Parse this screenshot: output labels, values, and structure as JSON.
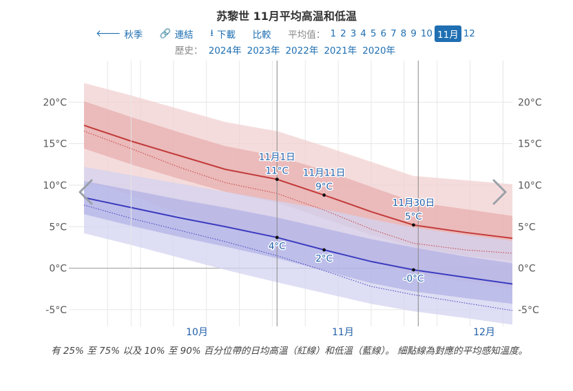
{
  "title": "苏黎世 11月平均高温和低温",
  "toolbar": {
    "prev_label": "秋季",
    "link_label": "連結",
    "download_label": "下載",
    "compare_label": "比較",
    "avg_label": "平均值：",
    "months": [
      "1",
      "2",
      "3",
      "4",
      "5",
      "6",
      "7",
      "8",
      "9",
      "10",
      "11月",
      "12"
    ],
    "active_month_index": 10
  },
  "history": {
    "label": "歷史：",
    "years": [
      "2024年",
      "2023年",
      "2022年",
      "2021年",
      "2020年"
    ]
  },
  "chart_data": {
    "type": "area",
    "x_range": [
      "2024-09-21",
      "2024-12-21"
    ],
    "ylim": [
      -7,
      25
    ],
    "y_ticks": [
      -5,
      0,
      5,
      10,
      15,
      20
    ],
    "y_tick_labels": [
      "-5°C",
      "0°C",
      "5°C",
      "10°C",
      "15°C",
      "20°C"
    ],
    "x_ticks": [
      {
        "label": "10月",
        "date": "2024-10-15"
      },
      {
        "label": "11月",
        "date": "2024-11-15"
      },
      {
        "label": "12月",
        "date": "2024-12-15"
      }
    ],
    "month_starts": [
      "2024-10-01",
      "2024-11-01",
      "2024-12-01"
    ],
    "series": [
      {
        "x": [
          "2024-09-21",
          "2024-10-01",
          "2024-10-11",
          "2024-10-21",
          "2024-11-01",
          "2024-11-11",
          "2024-11-21",
          "2024-11-30",
          "2024-12-11",
          "2024-12-21"
        ],
        "mean": [
          17.2,
          15.3,
          13.6,
          11.9,
          10.7,
          8.8,
          6.8,
          5.2,
          4.3,
          3.6
        ],
        "p10": [
          10.5,
          8.8,
          6.5,
          4.8,
          3.6,
          2.3,
          0.8,
          -0.7,
          -1.6,
          -2.5
        ],
        "p25": [
          14.4,
          12.5,
          10.8,
          9.2,
          7.9,
          6.0,
          4.0,
          2.6,
          1.5,
          0.9
        ],
        "p75": [
          20.1,
          18.2,
          16.4,
          14.7,
          13.5,
          11.8,
          9.8,
          8.0,
          7.1,
          6.3
        ],
        "p90": [
          22.3,
          20.8,
          19.2,
          17.6,
          16.5,
          14.7,
          12.8,
          11.1,
          10.6,
          10.1
        ],
        "feels_like": [
          16.5,
          14.4,
          12.2,
          10.3,
          9.0,
          7.0,
          4.7,
          3.0,
          2.2,
          1.8
        ]
      },
      {
        "x": [
          "2024-09-21",
          "2024-10-01",
          "2024-10-11",
          "2024-10-21",
          "2024-11-01",
          "2024-11-11",
          "2024-11-21",
          "2024-11-30",
          "2024-12-11",
          "2024-12-21"
        ],
        "mean": [
          8.5,
          7.3,
          6.1,
          5.0,
          3.7,
          2.2,
          0.8,
          -0.2,
          -1.1,
          -1.9
        ],
        "p10": [
          4.2,
          2.8,
          1.3,
          -0.2,
          -1.7,
          -3.0,
          -4.3,
          -5.2,
          -6.0,
          -6.8
        ],
        "p25": [
          6.5,
          5.1,
          3.8,
          2.6,
          1.2,
          -0.3,
          -1.8,
          -2.8,
          -3.6,
          -4.3
        ],
        "p75": [
          10.5,
          9.4,
          8.3,
          7.3,
          6.1,
          4.8,
          3.5,
          2.5,
          1.4,
          0.6
        ],
        "p90": [
          12.2,
          11.2,
          10.2,
          9.2,
          8.1,
          7.1,
          5.9,
          4.9,
          4.0,
          3.3
        ],
        "feels_like": [
          7.6,
          6.0,
          4.6,
          3.2,
          1.5,
          -0.3,
          -2.2,
          -3.2,
          -4.2,
          -5.1
        ]
      }
    ],
    "annotations": [
      {
        "date": "2024-11-01",
        "series": 0,
        "lines": [
          "11月1日",
          "11°C"
        ],
        "position": "above"
      },
      {
        "date": "2024-11-11",
        "series": 0,
        "lines": [
          "11月11日",
          "9°C"
        ],
        "position": "above"
      },
      {
        "date": "2024-11-30",
        "series": 0,
        "lines": [
          "11月30日",
          "5°C"
        ],
        "position": "above"
      },
      {
        "date": "2024-11-01",
        "series": 1,
        "lines": [
          "4°C"
        ],
        "position": "below"
      },
      {
        "date": "2024-11-11",
        "series": 1,
        "lines": [
          "2°C"
        ],
        "position": "below"
      },
      {
        "date": "2024-11-30",
        "series": 1,
        "lines": [
          "-0°C"
        ],
        "position": "below"
      }
    ],
    "colors": {
      "high_line": "#c23a3a",
      "high_band_inner": "#e5a3a3",
      "high_band_outer": "#f2d0d0",
      "low_line": "#3b3bbf",
      "low_band_inner": "#a9a9e3",
      "low_band_outer": "#d3d3f0",
      "label": "#1f5fa8",
      "grid": "#e6e6e6",
      "axis": "#555555"
    }
  },
  "caption": "有 25% 至 75% 以及 10% 至 90% 百分位帶的日均高溫（紅線）和低溫（藍線）。 細點線為對應的平均感知溫度。"
}
